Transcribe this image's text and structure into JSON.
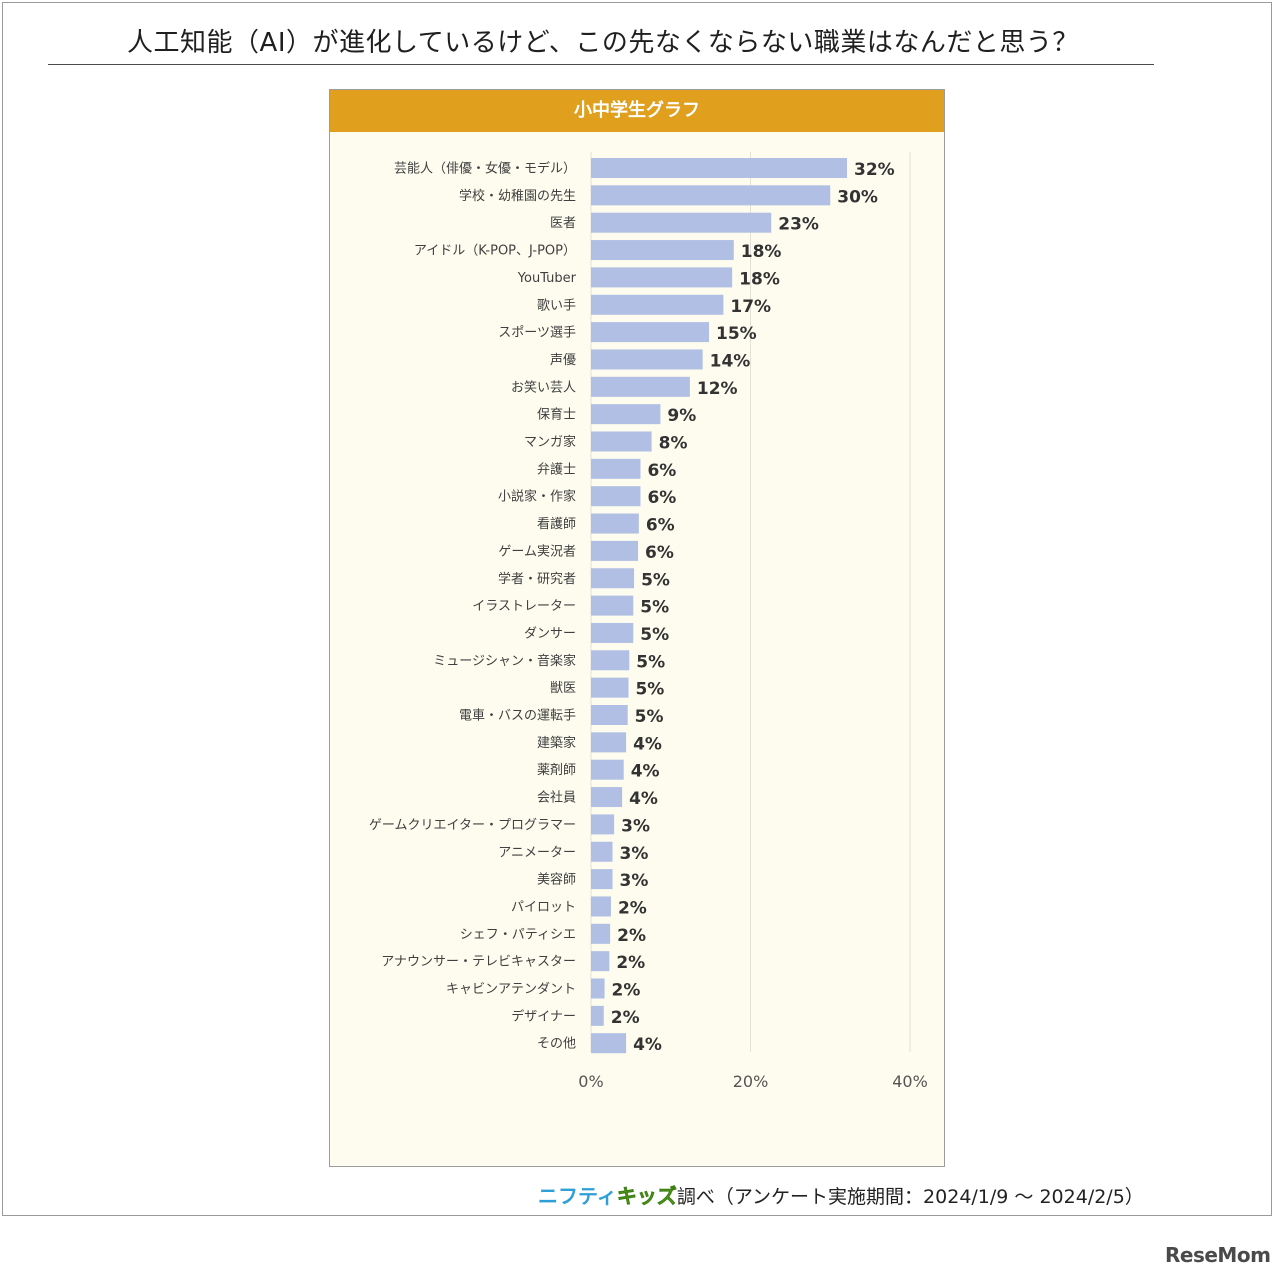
{
  "title": "人工知能（AI）が進化しているけど、この先なくならない職業はなんだと思う？",
  "chart_header": "小中学生グラフ",
  "source": {
    "brand_part1": "ニフティ",
    "brand_part2": "キッズ",
    "text": "調べ（アンケート実施期間：2024/1/9 ～ 2024/2/5）"
  },
  "watermark": "ReseMom",
  "colors": {
    "header": "#e09f1c",
    "bar": "#b0bfe3",
    "panel_bg": "#fdfcef"
  },
  "chart_data": {
    "type": "bar",
    "orientation": "horizontal",
    "title": "小中学生グラフ",
    "xlim": [
      0,
      40
    ],
    "x_ticks": [
      "0%",
      "20%",
      "40%"
    ],
    "grid": true,
    "categories": [
      "芸能人（俳優・女優・モデル）",
      "学校・幼稚園の先生",
      "医者",
      "アイドル（K-POP、J-POP）",
      "YouTuber",
      "歌い手",
      "スポーツ選手",
      "声優",
      "お笑い芸人",
      "保育士",
      "マンガ家",
      "弁護士",
      "小説家・作家",
      "看護師",
      "ゲーム実況者",
      "学者・研究者",
      "イラストレーター",
      "ダンサー",
      "ミュージシャン・音楽家",
      "獣医",
      "電車・バスの運転手",
      "建築家",
      "薬剤師",
      "会社員",
      "ゲームクリエイター・プログラマー",
      "アニメーター",
      "美容師",
      "パイロット",
      "シェフ・パティシエ",
      "アナウンサー・テレビキャスター",
      "キャビンアテンダント",
      "デザイナー",
      "その他"
    ],
    "values": [
      32.1,
      30.0,
      22.6,
      17.9,
      17.7,
      16.6,
      14.8,
      14.0,
      12.4,
      8.7,
      7.6,
      6.2,
      6.2,
      6.0,
      5.9,
      5.4,
      5.3,
      5.3,
      4.8,
      4.7,
      4.6,
      4.4,
      4.1,
      3.9,
      2.9,
      2.7,
      2.7,
      2.5,
      2.4,
      2.3,
      1.7,
      1.6,
      4.4
    ],
    "value_labels": [
      "32%",
      "30%",
      "23%",
      "18%",
      "18%",
      "17%",
      "15%",
      "14%",
      "12%",
      "9%",
      "8%",
      "6%",
      "6%",
      "6%",
      "6%",
      "5%",
      "5%",
      "5%",
      "5%",
      "5%",
      "5%",
      "4%",
      "4%",
      "4%",
      "3%",
      "3%",
      "3%",
      "2%",
      "2%",
      "2%",
      "2%",
      "2%",
      "4%"
    ]
  }
}
